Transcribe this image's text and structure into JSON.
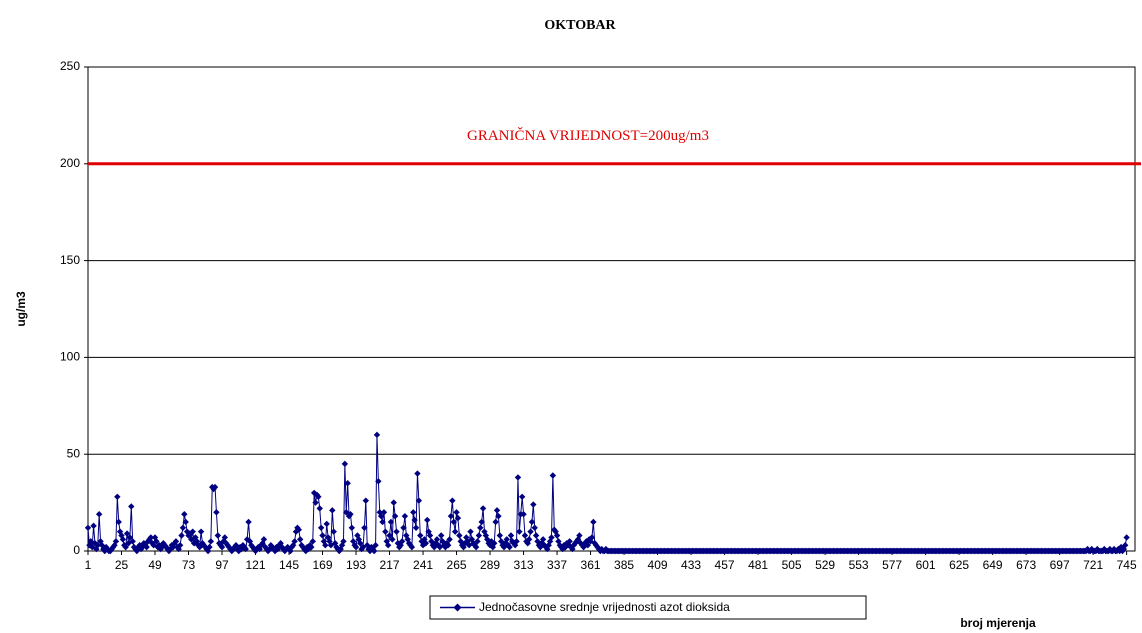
{
  "chart_data": {
    "type": "line",
    "title": "OKTOBAR",
    "y_label": "ug/m3",
    "x_label": "broj mjerenja",
    "annotation": "GRANIČNA VRIJEDNOST=200ug/m3",
    "threshold": {
      "value": 200,
      "color": "#e00000"
    },
    "xlim": [
      1,
      751
    ],
    "xticks": [
      1,
      25,
      49,
      73,
      97,
      121,
      145,
      169,
      193,
      217,
      241,
      265,
      289,
      313,
      337,
      361,
      385,
      409,
      433,
      457,
      481,
      505,
      529,
      553,
      577,
      601,
      625,
      649,
      673,
      697,
      721,
      745
    ],
    "ylim": [
      0,
      250
    ],
    "yticks": [
      0,
      50,
      100,
      150,
      200,
      250
    ],
    "grid": true,
    "legend": "bottom",
    "x": [
      1,
      2,
      3,
      4,
      5,
      6,
      7,
      8,
      9,
      10,
      11,
      12,
      13,
      14,
      15,
      16,
      17,
      18,
      19,
      20,
      21,
      22,
      23,
      24,
      25,
      26,
      27,
      28,
      29,
      30,
      31,
      32,
      33,
      34,
      35,
      36,
      37,
      38,
      39,
      40,
      41,
      42,
      43,
      44,
      45,
      46,
      47,
      48,
      49,
      50,
      51,
      52,
      53,
      54,
      55,
      56,
      57,
      58,
      59,
      60,
      61,
      62,
      63,
      64,
      65,
      66,
      67,
      68,
      69,
      70,
      71,
      72,
      73,
      74,
      75,
      76,
      77,
      78,
      79,
      80,
      81,
      82,
      83,
      84,
      85,
      86,
      87,
      88,
      89,
      90,
      91,
      92,
      93,
      94,
      95,
      96,
      97,
      98,
      99,
      100,
      101,
      102,
      103,
      104,
      105,
      106,
      107,
      108,
      109,
      110,
      111,
      112,
      113,
      114,
      115,
      116,
      117,
      118,
      119,
      120,
      121,
      122,
      123,
      124,
      125,
      126,
      127,
      128,
      129,
      130,
      131,
      132,
      133,
      134,
      135,
      136,
      137,
      138,
      139,
      140,
      141,
      142,
      143,
      144,
      145,
      146,
      147,
      148,
      149,
      150,
      151,
      152,
      153,
      154,
      155,
      156,
      157,
      158,
      159,
      160,
      161,
      162,
      163,
      164,
      165,
      166,
      167,
      168,
      169,
      170,
      171,
      172,
      173,
      174,
      175,
      176,
      177,
      178,
      179,
      180,
      181,
      182,
      183,
      184,
      185,
      186,
      187,
      188,
      189,
      190,
      191,
      192,
      193,
      194,
      195,
      196,
      197,
      198,
      199,
      200,
      201,
      202,
      203,
      204,
      205,
      206,
      207,
      208,
      209,
      210,
      211,
      212,
      213,
      214,
      215,
      216,
      217,
      218,
      219,
      220,
      221,
      222,
      223,
      224,
      225,
      226,
      227,
      228,
      229,
      230,
      231,
      232,
      233,
      234,
      235,
      236,
      237,
      238,
      239,
      240,
      241,
      242,
      243,
      244,
      245,
      246,
      247,
      248,
      249,
      250,
      251,
      252,
      253,
      254,
      255,
      256,
      257,
      258,
      259,
      260,
      261,
      262,
      263,
      264,
      265,
      266,
      267,
      268,
      269,
      270,
      271,
      272,
      273,
      274,
      275,
      276,
      277,
      278,
      279,
      280,
      281,
      282,
      283,
      284,
      285,
      286,
      287,
      288,
      289,
      290,
      291,
      292,
      293,
      294,
      295,
      296,
      297,
      298,
      299,
      300,
      301,
      302,
      303,
      304,
      305,
      306,
      307,
      308,
      309,
      310,
      311,
      312,
      313,
      314,
      315,
      316,
      317,
      318,
      319,
      320,
      321,
      322,
      323,
      324,
      325,
      326,
      327,
      328,
      329,
      330,
      331,
      332,
      333,
      334,
      335,
      336,
      337,
      338,
      339,
      340,
      341,
      342,
      343,
      344,
      345,
      346,
      347,
      348,
      349,
      350,
      351,
      352,
      353,
      354,
      355,
      356,
      357,
      358,
      359,
      360,
      361,
      362,
      363,
      364,
      365,
      366,
      367,
      368,
      369,
      370,
      371,
      372,
      373,
      374,
      375,
      376,
      377,
      378,
      379,
      380,
      381,
      382,
      383,
      384,
      385,
      386,
      387,
      388,
      389,
      390,
      391,
      392,
      393,
      394,
      395,
      396,
      397,
      398,
      399,
      400,
      401,
      402,
      403,
      404,
      405,
      406,
      407,
      408,
      409,
      410,
      411,
      412,
      413,
      414,
      415,
      416,
      417,
      418,
      419,
      420,
      421,
      422,
      423,
      424,
      425,
      426,
      427,
      428,
      429,
      430,
      431,
      432,
      433,
      434,
      435,
      436,
      437,
      438,
      439,
      440,
      441,
      442,
      443,
      444,
      445,
      446,
      447,
      448,
      449,
      450,
      451,
      452,
      453,
      454,
      455,
      456,
      457,
      458,
      459,
      460,
      461,
      462,
      463,
      464,
      465,
      466,
      467,
      468,
      469,
      470,
      471,
      472,
      473,
      474,
      475,
      476,
      477,
      478,
      479,
      480,
      481,
      482,
      483,
      484,
      485,
      486,
      487,
      488,
      489,
      490,
      491,
      492,
      493,
      494,
      495,
      496,
      497,
      498,
      499,
      500,
      501,
      502,
      503,
      504,
      505,
      506,
      507,
      508,
      509,
      510,
      511,
      512,
      513,
      514,
      515,
      516,
      517,
      518,
      519,
      520,
      521,
      522,
      523,
      524,
      525,
      526,
      527,
      528,
      529,
      530,
      531,
      532,
      533,
      534,
      535,
      536,
      537,
      538,
      539,
      540,
      541,
      542,
      543,
      544,
      545,
      546,
      547,
      548,
      549,
      550,
      551,
      552,
      553,
      554,
      555,
      556,
      557,
      558,
      559,
      560,
      561,
      562,
      563,
      564,
      565,
      566,
      567,
      568,
      569,
      570,
      571,
      572,
      573,
      574,
      575,
      576,
      577,
      578,
      579,
      580,
      581,
      582,
      583,
      584,
      585,
      586,
      587,
      588,
      589,
      590,
      591,
      592,
      593,
      594,
      595,
      596,
      597,
      598,
      599,
      600,
      601,
      602,
      603,
      604,
      605,
      606,
      607,
      608,
      609,
      610,
      611,
      612,
      613,
      614,
      615,
      616,
      617,
      618,
      619,
      620,
      621,
      622,
      623,
      624,
      625,
      626,
      627,
      628,
      629,
      630,
      631,
      632,
      633,
      634,
      635,
      636,
      637,
      638,
      639,
      640,
      641,
      642,
      643,
      644,
      645,
      646,
      647,
      648,
      649,
      650,
      651,
      652,
      653,
      654,
      655,
      656,
      657,
      658,
      659,
      660,
      661,
      662,
      663,
      664,
      665,
      666,
      667,
      668,
      669,
      670,
      671,
      672,
      673,
      674,
      675,
      676,
      677,
      678,
      679,
      680,
      681,
      682,
      683,
      684,
      685,
      686,
      687,
      688,
      689,
      690,
      691,
      692,
      693,
      694,
      695,
      696,
      697,
      698,
      699,
      700,
      701,
      702,
      703,
      704,
      705,
      706,
      707,
      708,
      709,
      710,
      711,
      712,
      713,
      714,
      715,
      716,
      717,
      718,
      719,
      720,
      721,
      722,
      723,
      724,
      725,
      726,
      727,
      728,
      729,
      730,
      731,
      732,
      733,
      734,
      735,
      736,
      737,
      738,
      739,
      740,
      741,
      742,
      743,
      744,
      745
    ],
    "series": [
      {
        "name": "Jednočasovne srednje vrijednosti azot dioksida",
        "color": "#000080",
        "values": [
          12,
          3,
          5,
          2,
          13,
          4,
          1,
          3,
          19,
          5,
          3,
          1,
          0,
          2,
          1,
          0,
          0,
          1,
          2,
          3,
          5,
          28,
          15,
          10,
          8,
          6,
          3,
          2,
          9,
          4,
          7,
          23,
          5,
          2,
          1,
          0,
          2,
          3,
          1,
          2,
          4,
          3,
          2,
          5,
          6,
          7,
          4,
          3,
          7,
          5,
          2,
          3,
          1,
          2,
          4,
          3,
          2,
          1,
          0,
          1,
          3,
          2,
          4,
          5,
          2,
          1,
          3,
          8,
          12,
          19,
          15,
          10,
          8,
          9,
          6,
          10,
          4,
          7,
          5,
          3,
          2,
          10,
          4,
          3,
          2,
          1,
          0,
          2,
          5,
          33,
          32,
          33,
          20,
          8,
          4,
          3,
          2,
          5,
          7,
          4,
          3,
          2,
          1,
          0,
          1,
          2,
          3,
          1,
          0,
          2,
          1,
          3,
          2,
          1,
          6,
          15,
          5,
          3,
          2,
          1,
          0,
          1,
          2,
          1,
          3,
          4,
          6,
          2,
          1,
          0,
          1,
          3,
          2,
          1,
          0,
          2,
          1,
          3,
          4,
          2,
          1,
          0,
          1,
          2,
          1,
          0,
          2,
          3,
          5,
          10,
          12,
          11,
          6,
          3,
          2,
          1,
          0,
          2,
          1,
          3,
          2,
          5,
          30,
          25,
          29,
          28,
          22,
          12,
          8,
          5,
          3,
          14,
          7,
          5,
          3,
          21,
          10,
          4,
          2,
          1,
          0,
          1,
          3,
          5,
          45,
          20,
          35,
          18,
          19,
          12,
          5,
          3,
          2,
          8,
          6,
          4,
          1,
          2,
          12,
          26,
          3,
          1,
          0,
          2,
          1,
          0,
          3,
          60,
          36,
          20,
          18,
          15,
          20,
          10,
          5,
          3,
          8,
          15,
          6,
          25,
          18,
          10,
          4,
          2,
          3,
          5,
          12,
          18,
          8,
          6,
          4,
          3,
          2,
          20,
          16,
          12,
          40,
          26,
          8,
          5,
          3,
          6,
          4,
          16,
          10,
          8,
          5,
          3,
          2,
          4,
          6,
          3,
          2,
          8,
          5,
          3,
          2,
          4,
          3,
          6,
          18,
          26,
          15,
          10,
          20,
          17,
          8,
          5,
          3,
          2,
          4,
          7,
          5,
          3,
          10,
          6,
          4,
          3,
          2,
          5,
          8,
          12,
          15,
          22,
          10,
          8,
          6,
          4,
          3,
          5,
          2,
          4,
          15,
          21,
          18,
          8,
          5,
          3,
          2,
          4,
          6,
          3,
          2,
          8,
          5,
          4,
          3,
          5,
          38,
          10,
          19,
          28,
          19,
          8,
          5,
          4,
          6,
          10,
          15,
          24,
          12,
          8,
          5,
          3,
          2,
          4,
          6,
          3,
          2,
          1,
          3,
          5,
          7,
          39,
          11,
          10,
          8,
          5,
          3,
          2,
          1,
          3,
          2,
          4,
          3,
          5,
          2,
          1,
          3,
          4,
          5,
          6,
          8,
          4,
          3,
          2,
          4,
          5,
          3,
          6,
          5,
          7,
          15,
          4,
          3,
          2,
          1,
          0,
          1,
          0,
          0,
          1,
          0,
          0,
          0,
          0,
          0,
          0,
          0,
          0,
          0,
          0,
          0,
          0,
          0,
          0,
          0,
          0,
          0,
          0,
          0,
          0,
          0,
          0,
          0,
          0,
          0,
          0,
          0,
          0,
          0,
          0,
          0,
          0,
          0,
          0,
          0,
          0,
          0,
          0,
          0,
          0,
          0,
          0,
          0,
          0,
          0,
          0,
          0,
          0,
          0,
          0,
          0,
          0,
          0,
          0,
          0,
          0,
          0,
          0,
          0,
          0,
          0,
          0,
          0,
          0,
          0,
          0,
          0,
          0,
          0,
          0,
          0,
          0,
          0,
          0,
          0,
          0,
          0,
          0,
          0,
          0,
          0,
          0,
          0,
          0,
          0,
          0,
          0,
          0,
          0,
          0,
          0,
          0,
          0,
          0,
          0,
          0,
          0,
          0,
          0,
          0,
          0,
          0,
          0,
          0,
          0,
          0,
          0,
          0,
          0,
          0,
          0,
          0,
          0,
          0,
          0,
          0,
          0,
          0,
          0,
          0,
          0,
          0,
          0,
          0,
          0,
          0,
          0,
          0,
          0,
          0,
          0,
          0,
          0,
          0,
          0,
          0,
          0,
          0,
          0,
          0,
          0,
          0,
          0,
          0,
          0,
          0,
          0,
          0,
          0,
          0,
          0,
          0,
          0,
          0,
          0,
          0,
          0,
          0,
          0,
          0,
          0,
          0,
          0,
          0,
          0,
          0,
          0,
          0,
          0,
          0,
          0,
          0,
          0,
          0,
          0,
          0,
          0,
          0,
          0,
          0,
          0,
          0,
          0,
          0,
          0,
          0,
          0,
          0,
          0,
          0,
          0,
          0,
          0,
          0,
          0,
          0,
          0,
          0,
          0,
          0,
          0,
          0,
          0,
          0,
          0,
          0,
          0,
          0,
          0,
          0,
          0,
          0,
          0,
          0,
          0,
          0,
          0,
          0,
          0,
          0,
          0,
          0,
          0,
          0,
          0,
          0,
          0,
          0,
          0,
          0,
          0,
          0,
          0,
          0,
          0,
          0,
          0,
          0,
          0,
          0,
          0,
          0,
          0,
          0,
          0,
          0,
          0,
          0,
          0,
          0,
          0,
          0,
          0,
          0,
          0,
          0,
          0,
          0,
          0,
          0,
          0,
          0,
          0,
          0,
          0,
          0,
          0,
          0,
          0,
          0,
          0,
          0,
          0,
          0,
          0,
          0,
          0,
          0,
          0,
          0,
          0,
          0,
          0,
          0,
          0,
          0,
          0,
          0,
          0,
          0,
          0,
          0,
          0,
          0,
          0,
          0,
          0,
          0,
          0,
          0,
          0,
          0,
          0,
          0,
          0,
          0,
          0,
          0,
          0,
          0,
          0,
          0,
          0,
          0,
          0,
          0,
          0,
          0,
          0,
          0,
          0,
          0,
          0,
          0,
          0,
          0,
          0,
          0,
          0,
          0,
          0,
          0,
          0,
          0,
          0,
          0,
          0,
          0,
          0,
          0,
          0,
          0,
          0,
          0,
          1,
          0,
          0,
          1,
          0,
          0,
          0,
          1,
          0,
          0,
          0,
          0,
          1,
          0,
          0,
          0,
          1,
          0,
          0,
          1,
          0,
          0,
          1,
          0,
          2,
          0,
          1,
          3,
          7
        ]
      }
    ]
  }
}
